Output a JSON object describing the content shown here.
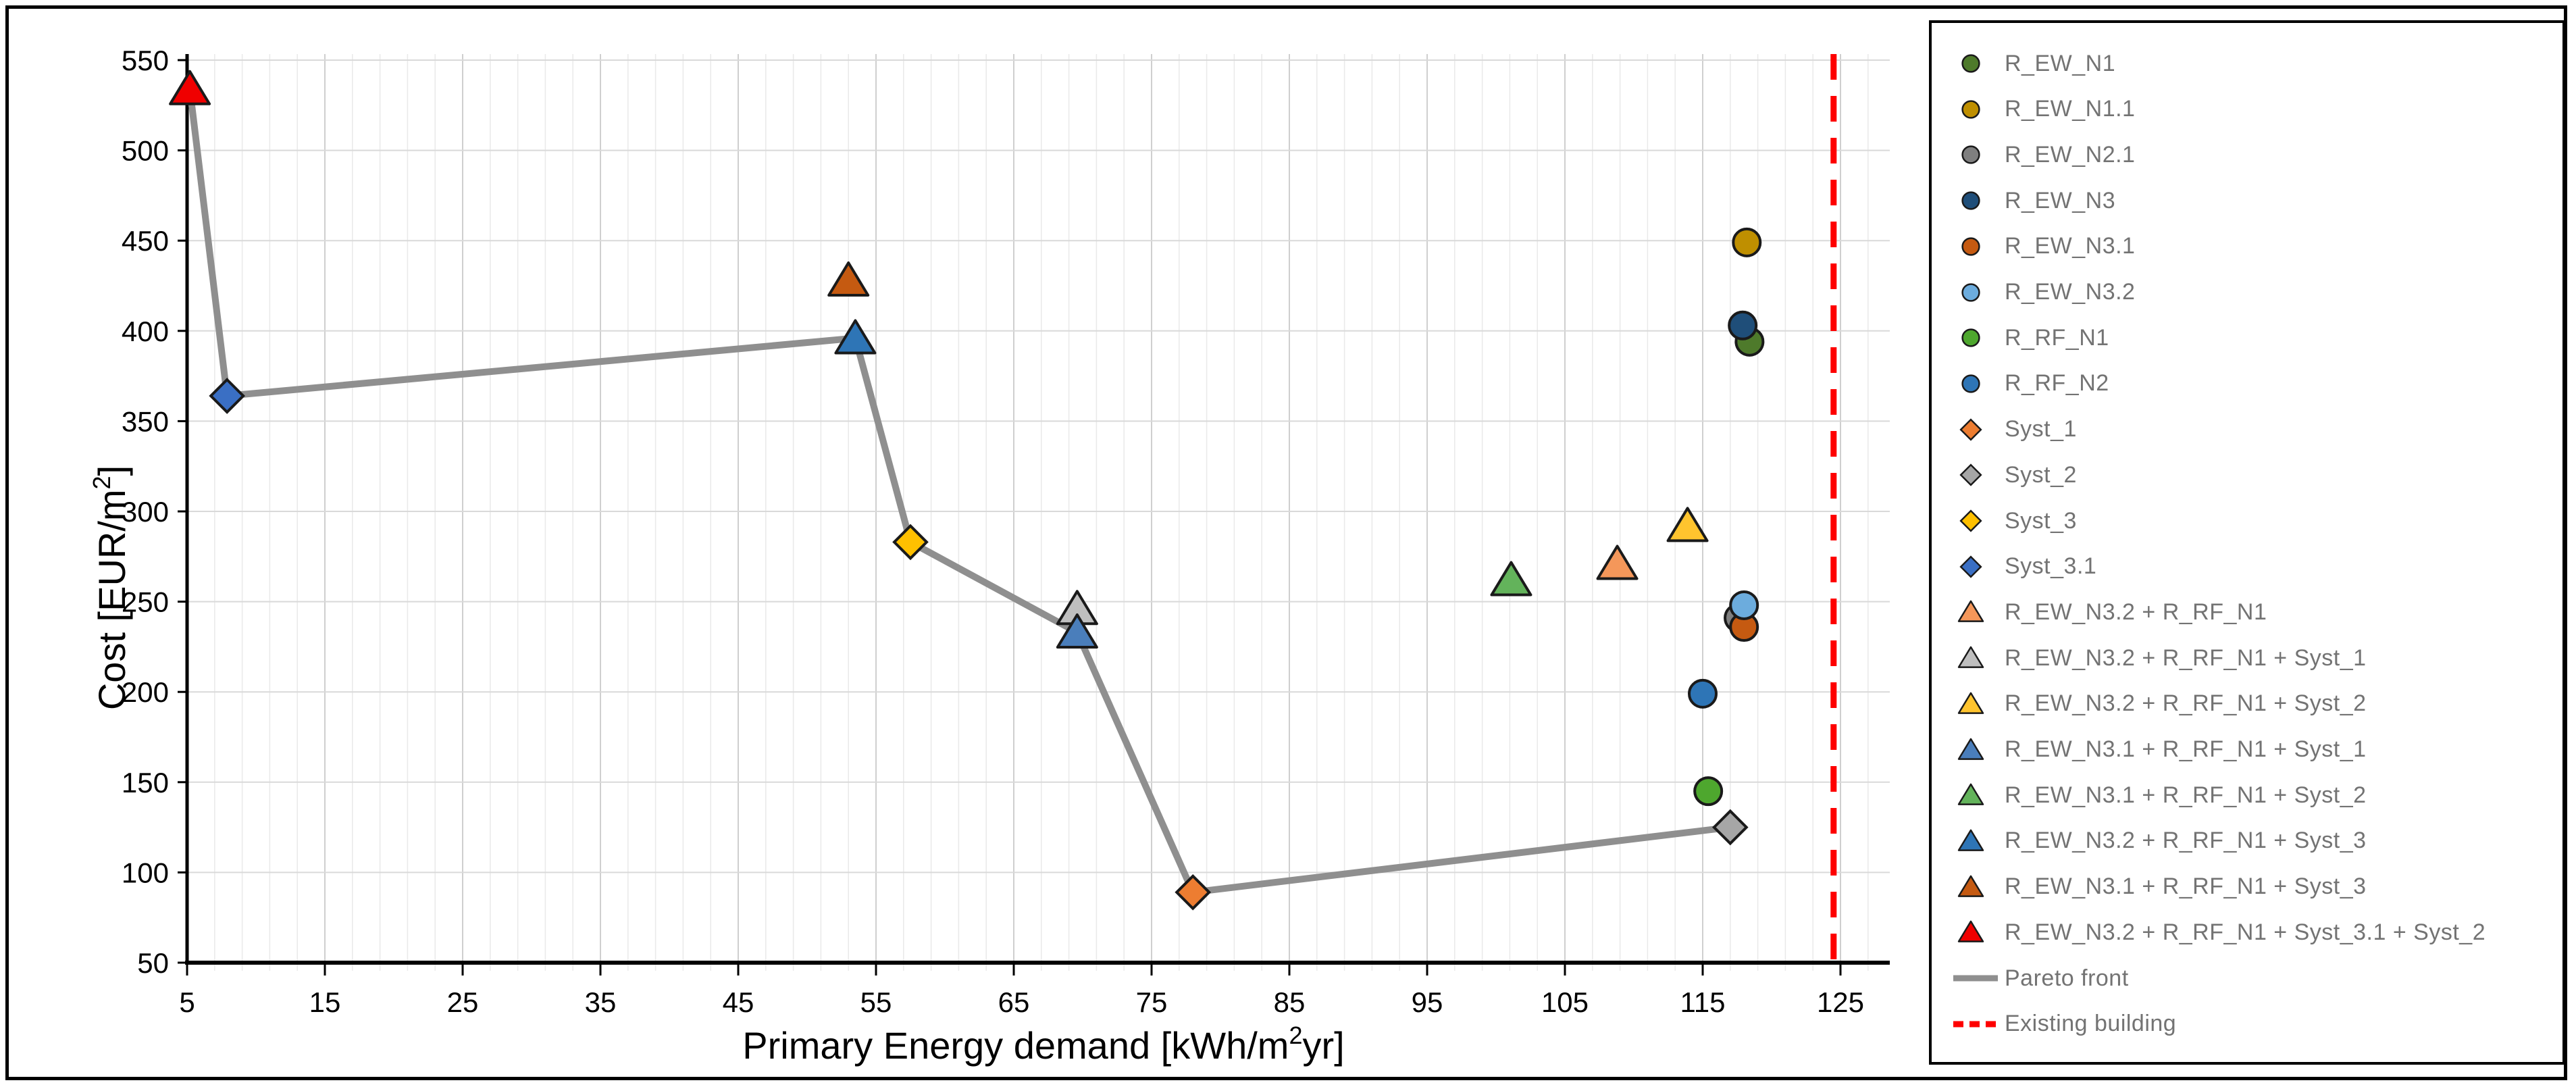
{
  "figure": {
    "background": "#FFFFFF",
    "frame_color": "#000000",
    "legend_text_color": "#737373",
    "pareto_color": "#8F8F8F",
    "existing_building_color": "#FE0000",
    "marker_edge_color": "#1A1A1A"
  },
  "chart_data": {
    "type": "scatter",
    "title": "",
    "xlabel": {
      "pre": "Primary Energy demand [kWh/m",
      "sup": "2",
      "post": "yr]"
    },
    "ylabel": {
      "pre": "Cost [EUR/m",
      "sup": "2",
      "post": "]"
    },
    "x_ticks": [
      5,
      15,
      25,
      35,
      45,
      55,
      65,
      75,
      85,
      95,
      105,
      115,
      125
    ],
    "y_ticks": [
      550,
      500,
      450,
      400,
      350,
      300,
      250,
      200,
      150,
      100,
      50
    ],
    "xlim": [
      5,
      128.8
    ],
    "ylim": [
      50,
      556
    ],
    "grid": {
      "horizontal_major_step": 50,
      "vertical_major_step": 10,
      "vertical_minor_step": 2
    },
    "legend_position": "right",
    "series": [
      {
        "name": "R_EW_N1",
        "marker": "circle",
        "color": "#4E7A2B",
        "points": [
          [
            118.4,
            394
          ]
        ]
      },
      {
        "name": "R_EW_N1.1",
        "marker": "circle",
        "color": "#BF8F00",
        "points": [
          [
            118.2,
            449
          ]
        ]
      },
      {
        "name": "R_EW_N2.1",
        "marker": "circle",
        "color": "#7F7F7F",
        "points": [
          [
            117.6,
            241
          ]
        ]
      },
      {
        "name": "R_EW_N3",
        "marker": "circle",
        "color": "#1F4E79",
        "points": [
          [
            117.9,
            403
          ]
        ]
      },
      {
        "name": "R_EW_N3.1",
        "marker": "circle",
        "color": "#C55A11",
        "points": [
          [
            118.0,
            236
          ]
        ]
      },
      {
        "name": "R_EW_N3.2",
        "marker": "circle",
        "color": "#6CACDD",
        "points": [
          [
            118.0,
            248
          ]
        ]
      },
      {
        "name": "R_RF_N1",
        "marker": "circle",
        "color": "#4EA72E",
        "points": [
          [
            115.4,
            145
          ]
        ]
      },
      {
        "name": "R_RF_N2",
        "marker": "circle",
        "color": "#2E75B6",
        "points": [
          [
            115.0,
            199
          ]
        ]
      },
      {
        "name": "Syst_1",
        "marker": "diamond",
        "color": "#ED7D31",
        "points": [
          [
            78.0,
            89
          ]
        ]
      },
      {
        "name": "Syst_2",
        "marker": "diamond",
        "color": "#A6A6A6",
        "points": [
          [
            117.0,
            125
          ]
        ]
      },
      {
        "name": "Syst_3",
        "marker": "diamond",
        "color": "#FFC000",
        "points": [
          [
            57.5,
            283
          ]
        ]
      },
      {
        "name": "Syst_3.1",
        "marker": "diamond",
        "color": "#3A6FC4",
        "points": [
          [
            7.9,
            364
          ]
        ]
      },
      {
        "name": "R_EW_N3.2 + R_RF_N1",
        "marker": "triangle",
        "color": "#F4975A",
        "points": [
          [
            108.8,
            271
          ]
        ]
      },
      {
        "name": "R_EW_N3.2 + R_RF_N1 + Syst_1",
        "marker": "triangle",
        "color": "#BFBFBF",
        "points": [
          [
            69.6,
            246
          ]
        ]
      },
      {
        "name": "R_EW_N3.2 + R_RF_N1 + Syst_2",
        "marker": "triangle",
        "color": "#FFC42E",
        "points": [
          [
            113.9,
            292
          ]
        ]
      },
      {
        "name": "R_EW_N3.1 + R_RF_N1 + Syst_1",
        "marker": "triangle",
        "color": "#4A7EBB",
        "points": [
          [
            69.6,
            233
          ]
        ]
      },
      {
        "name": "R_EW_N3.1 + R_RF_N1 + Syst_2",
        "marker": "triangle",
        "color": "#63B35B",
        "points": [
          [
            101.1,
            262
          ]
        ]
      },
      {
        "name": "R_EW_N3.2 + R_RF_N1 + Syst_3",
        "marker": "triangle",
        "color": "#2E75B6",
        "points": [
          [
            53.5,
            396
          ]
        ]
      },
      {
        "name": "R_EW_N3.1 + R_RF_N1 + Syst_3",
        "marker": "triangle",
        "color": "#C55A11",
        "points": [
          [
            53.0,
            428
          ]
        ]
      },
      {
        "name": "R_EW_N3.2 + R_RF_N1 + Syst_3.1 + Syst_2",
        "marker": "triangle",
        "color": "#F00000",
        "points": [
          [
            5.2,
            534
          ]
        ]
      }
    ],
    "pareto_front": {
      "name": "Pareto front",
      "color": "#8F8F8F",
      "points": [
        [
          5.2,
          534
        ],
        [
          7.9,
          364
        ],
        [
          53.5,
          396
        ],
        [
          57.5,
          283
        ],
        [
          69.6,
          233
        ],
        [
          78.0,
          89
        ],
        [
          117.0,
          125
        ]
      ]
    },
    "existing_building": {
      "name": "Existing building",
      "color": "#FE0000",
      "x": 124.5
    }
  }
}
